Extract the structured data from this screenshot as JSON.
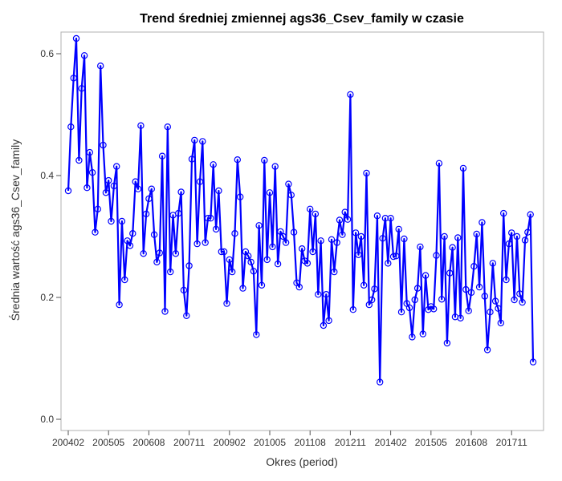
{
  "chart_data": {
    "type": "line",
    "title": "Trend średniej zmiennej ags36_Csev_family w czasie",
    "xlabel": "Okres (period)",
    "ylabel": "Średnia wartość ags36_Csev_family",
    "x_tick_labels": [
      "200402",
      "200505",
      "200608",
      "200711",
      "200902",
      "201005",
      "201108",
      "201211",
      "201402",
      "201505",
      "201608",
      "201711"
    ],
    "y_tick_labels": [
      "0.0",
      "0.2",
      "0.4",
      "0.6"
    ],
    "y_ticks": [
      0.0,
      0.2,
      0.4,
      0.6
    ],
    "ylim": [
      -0.02,
      0.65
    ],
    "grid": false,
    "marker": "open-circle",
    "series": [
      {
        "color": "#0000ff",
        "values": [
          0.375,
          0.48,
          0.56,
          0.625,
          0.425,
          0.543,
          0.597,
          0.38,
          0.438,
          0.405,
          0.307,
          0.345,
          0.58,
          0.45,
          0.372,
          0.392,
          0.325,
          0.383,
          0.415,
          0.188,
          0.325,
          0.229,
          0.293,
          0.285,
          0.305,
          0.39,
          0.378,
          0.482,
          0.272,
          0.337,
          0.362,
          0.378,
          0.303,
          0.258,
          0.273,
          0.432,
          0.177,
          0.48,
          0.242,
          0.335,
          0.272,
          0.338,
          0.373,
          0.212,
          0.17,
          0.252,
          0.427,
          0.458,
          0.288,
          0.39,
          0.456,
          0.29,
          0.33,
          0.33,
          0.418,
          0.312,
          0.375,
          0.275,
          0.275,
          0.19,
          0.262,
          0.242,
          0.305,
          0.426,
          0.365,
          0.215,
          0.275,
          0.268,
          0.258,
          0.243,
          0.139,
          0.318,
          0.22,
          0.425,
          0.262,
          0.372,
          0.283,
          0.415,
          0.255,
          0.308,
          0.3,
          0.29,
          0.386,
          0.368,
          0.307,
          0.224,
          0.217,
          0.28,
          0.26,
          0.256,
          0.345,
          0.275,
          0.337,
          0.205,
          0.293,
          0.154,
          0.205,
          0.162,
          0.295,
          0.242,
          0.29,
          0.327,
          0.303,
          0.34,
          0.328,
          0.533,
          0.18,
          0.306,
          0.27,
          0.3,
          0.22,
          0.404,
          0.188,
          0.196,
          0.214,
          0.334,
          0.061,
          0.297,
          0.33,
          0.256,
          0.33,
          0.267,
          0.268,
          0.312,
          0.176,
          0.296,
          0.19,
          0.183,
          0.135,
          0.196,
          0.215,
          0.283,
          0.14,
          0.236,
          0.18,
          0.185,
          0.181,
          0.269,
          0.42,
          0.197,
          0.3,
          0.125,
          0.24,
          0.282,
          0.168,
          0.298,
          0.166,
          0.412,
          0.213,
          0.178,
          0.208,
          0.251,
          0.304,
          0.217,
          0.323,
          0.202,
          0.114,
          0.176,
          0.256,
          0.194,
          0.182,
          0.158,
          0.338,
          0.229,
          0.288,
          0.306,
          0.196,
          0.3,
          0.206,
          0.192,
          0.294,
          0.307,
          0.336,
          0.094
        ]
      }
    ]
  }
}
